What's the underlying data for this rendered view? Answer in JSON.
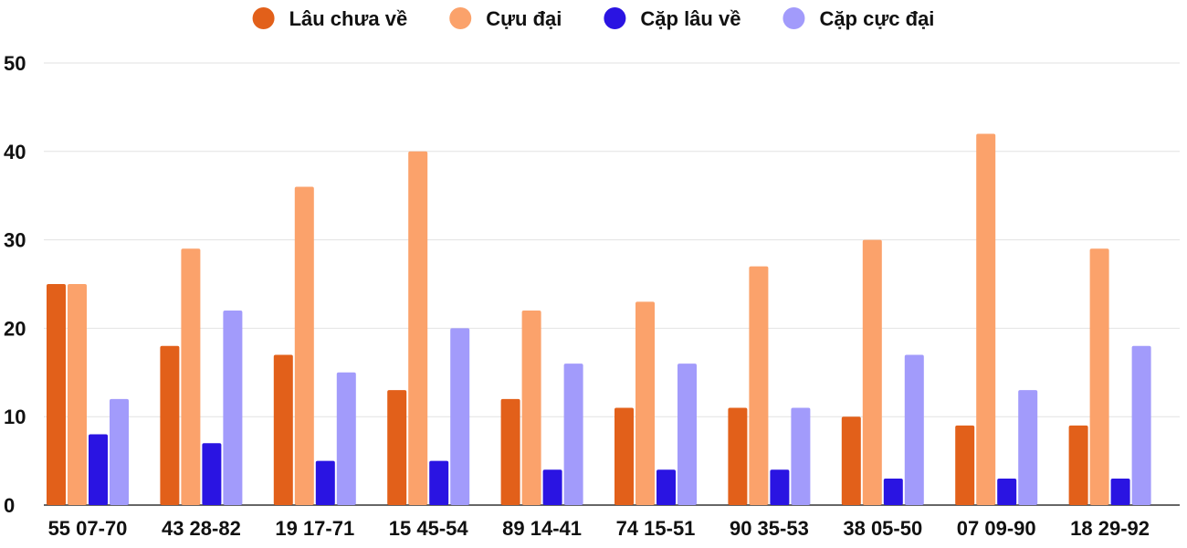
{
  "chart_data": {
    "type": "bar",
    "categories": [
      "55 07-70",
      "43 28-82",
      "19 17-71",
      "15 45-54",
      "89 14-41",
      "74 15-51",
      "90 35-53",
      "38 05-50",
      "07 09-90",
      "18 29-92"
    ],
    "series": [
      {
        "name": "Lâu chưa về",
        "color": "#e2601a",
        "values": [
          25,
          18,
          17,
          13,
          12,
          11,
          11,
          10,
          9,
          9
        ]
      },
      {
        "name": "Cựu đại",
        "color": "#fba26b",
        "values": [
          25,
          29,
          36,
          40,
          22,
          23,
          27,
          30,
          42,
          29
        ]
      },
      {
        "name": "Cặp lâu về",
        "color": "#2a14e2",
        "values": [
          8,
          7,
          5,
          5,
          4,
          4,
          4,
          3,
          3,
          3
        ]
      },
      {
        "name": "Cặp cực đại",
        "color": "#a29bfb",
        "values": [
          12,
          22,
          15,
          20,
          16,
          16,
          11,
          17,
          13,
          18
        ]
      }
    ],
    "yticks": [
      "0",
      "10",
      "20",
      "30",
      "40",
      "50"
    ],
    "ylim": [
      0,
      50
    ],
    "grid": true,
    "legend": "top-center",
    "title": "",
    "xlabel": "",
    "ylabel": ""
  }
}
